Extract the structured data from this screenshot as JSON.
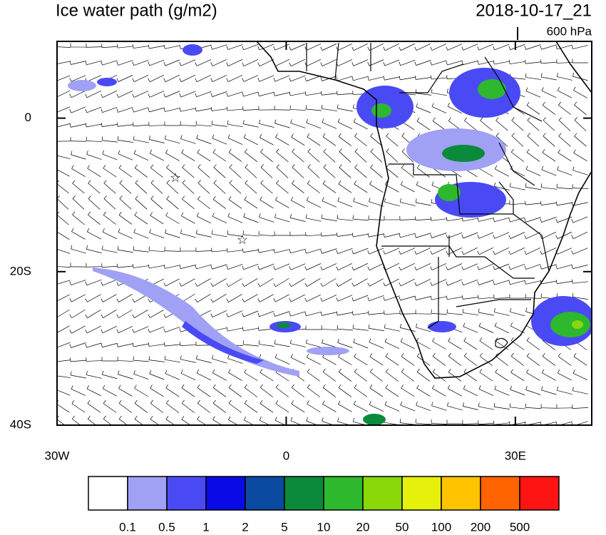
{
  "chart_data": {
    "type": "contour-map",
    "title": "Ice water path (g/m2)",
    "time": "2018-10-17_21",
    "level": "600 hPa",
    "xlim": [
      -30,
      40
    ],
    "ylim": [
      -40,
      10
    ],
    "xticks": [
      {
        "value": -30,
        "label": "30W"
      },
      0,
      {
        "value": 30,
        "label": "30E"
      }
    ],
    "yticks": [
      0,
      {
        "value": -20,
        "label": "20S"
      },
      {
        "value": -40,
        "label": "40S"
      }
    ],
    "colorbar": {
      "levels": [
        0.1,
        0.5,
        1,
        2,
        5,
        10,
        20,
        50,
        100,
        200,
        500
      ],
      "colors": [
        "#ffffff",
        "#a0a0f5",
        "#4a4af5",
        "#0a0ae6",
        "#0a4aa0",
        "#0a8a3a",
        "#2db82d",
        "#8ad70a",
        "#e6f00a",
        "#ffc300",
        "#ff6400",
        "#ff1414"
      ]
    }
  }
}
